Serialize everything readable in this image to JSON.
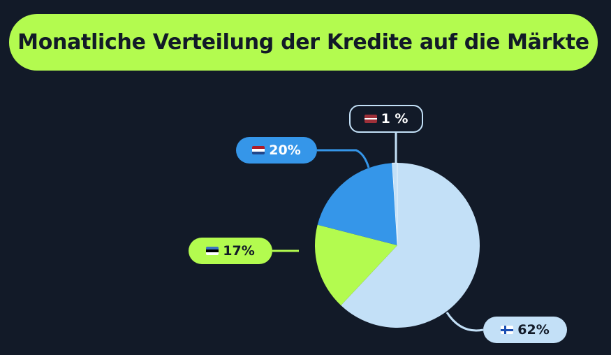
{
  "title": "Monatliche Verteilung der Kredite auf die Märkte",
  "colors": {
    "background": "#121a28",
    "title_bg": "#b3fb4f",
    "finland": "#c3e0f7",
    "estonia": "#b3fb4f",
    "netherlands": "#3596e9",
    "latvia": "#c3e0f7"
  },
  "chart_data": {
    "type": "pie",
    "title": "Monatliche Verteilung der Kredite auf die Märkte",
    "slices": [
      {
        "market": "flag-finland",
        "label": "62%",
        "value": 62
      },
      {
        "market": "flag-estonia",
        "label": "17%",
        "value": 17
      },
      {
        "market": "flag-netherlands",
        "label": "20%",
        "value": 20
      },
      {
        "market": "flag-latvia",
        "label": "1 %",
        "value": 1
      }
    ]
  }
}
